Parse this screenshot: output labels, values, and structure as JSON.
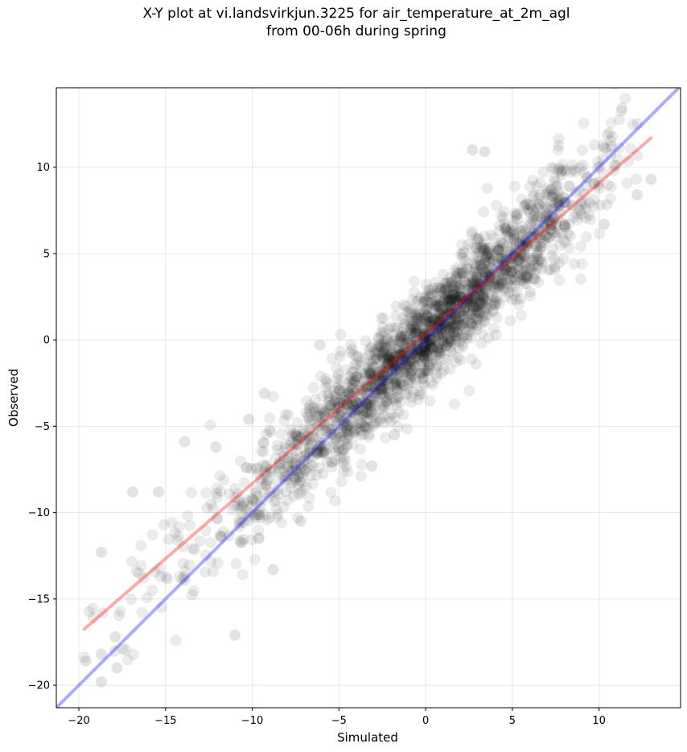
{
  "chart_data": {
    "type": "scatter",
    "title_line1": "X-Y plot at vi.landsvirkjun.3225 for air_temperature_at_2m_agl",
    "title_line2": "from 00-06h during spring",
    "xlabel": "Simulated",
    "ylabel": "Observed",
    "xlim": [
      -21.3,
      14.7
    ],
    "ylim": [
      -21.3,
      14.6
    ],
    "xticks": [
      -20,
      -15,
      -10,
      -5,
      0,
      5,
      10
    ],
    "yticks": [
      -20,
      -15,
      -10,
      -5,
      0,
      5,
      10
    ],
    "grid": true,
    "point_color": "#000000",
    "point_opacity": 0.08,
    "reference_lines": [
      {
        "kind": "one-to-one",
        "color": "#0000ff",
        "slope": 1.0,
        "intercept": 0.0,
        "x_range": [
          -21.3,
          14.7
        ]
      },
      {
        "kind": "fit",
        "color": "#ff0000",
        "slope": 0.87,
        "intercept": 0.38,
        "x_range": [
          -19.7,
          13.0
        ]
      }
    ],
    "highlighted_points": [
      {
        "x": -19.6,
        "y": -18.6
      },
      {
        "x": -18.7,
        "y": -19.8
      },
      {
        "x": -18.7,
        "y": -18.2
      },
      {
        "x": -18.7,
        "y": -12.3
      },
      {
        "x": -17.8,
        "y": -19.0
      },
      {
        "x": -17.9,
        "y": -17.2
      },
      {
        "x": -16.9,
        "y": -8.8
      },
      {
        "x": -15.4,
        "y": -8.8
      },
      {
        "x": -13.9,
        "y": -5.9
      },
      {
        "x": -12.1,
        "y": -6.2
      },
      {
        "x": -11.0,
        "y": -17.1
      },
      {
        "x": -8.8,
        "y": -13.3
      },
      {
        "x": -10.2,
        "y": -4.6
      },
      {
        "x": -9.3,
        "y": -3.1
      },
      {
        "x": -7.2,
        "y": -10.5
      },
      {
        "x": -6.1,
        "y": -0.3
      },
      {
        "x": -3.1,
        "y": -7.3
      },
      {
        "x": -1.8,
        "y": -5.5
      },
      {
        "x": 2.7,
        "y": 11.0
      },
      {
        "x": 3.4,
        "y": 10.9
      },
      {
        "x": 10.3,
        "y": 6.7
      },
      {
        "x": 12.2,
        "y": 8.4
      },
      {
        "x": 13.0,
        "y": 9.3
      },
      {
        "x": 10.7,
        "y": 11.2
      }
    ],
    "cloud": {
      "count": 2200,
      "slope": 0.93,
      "spread": 1.35,
      "x_min": -19.7,
      "x_max": 12.5
    }
  }
}
